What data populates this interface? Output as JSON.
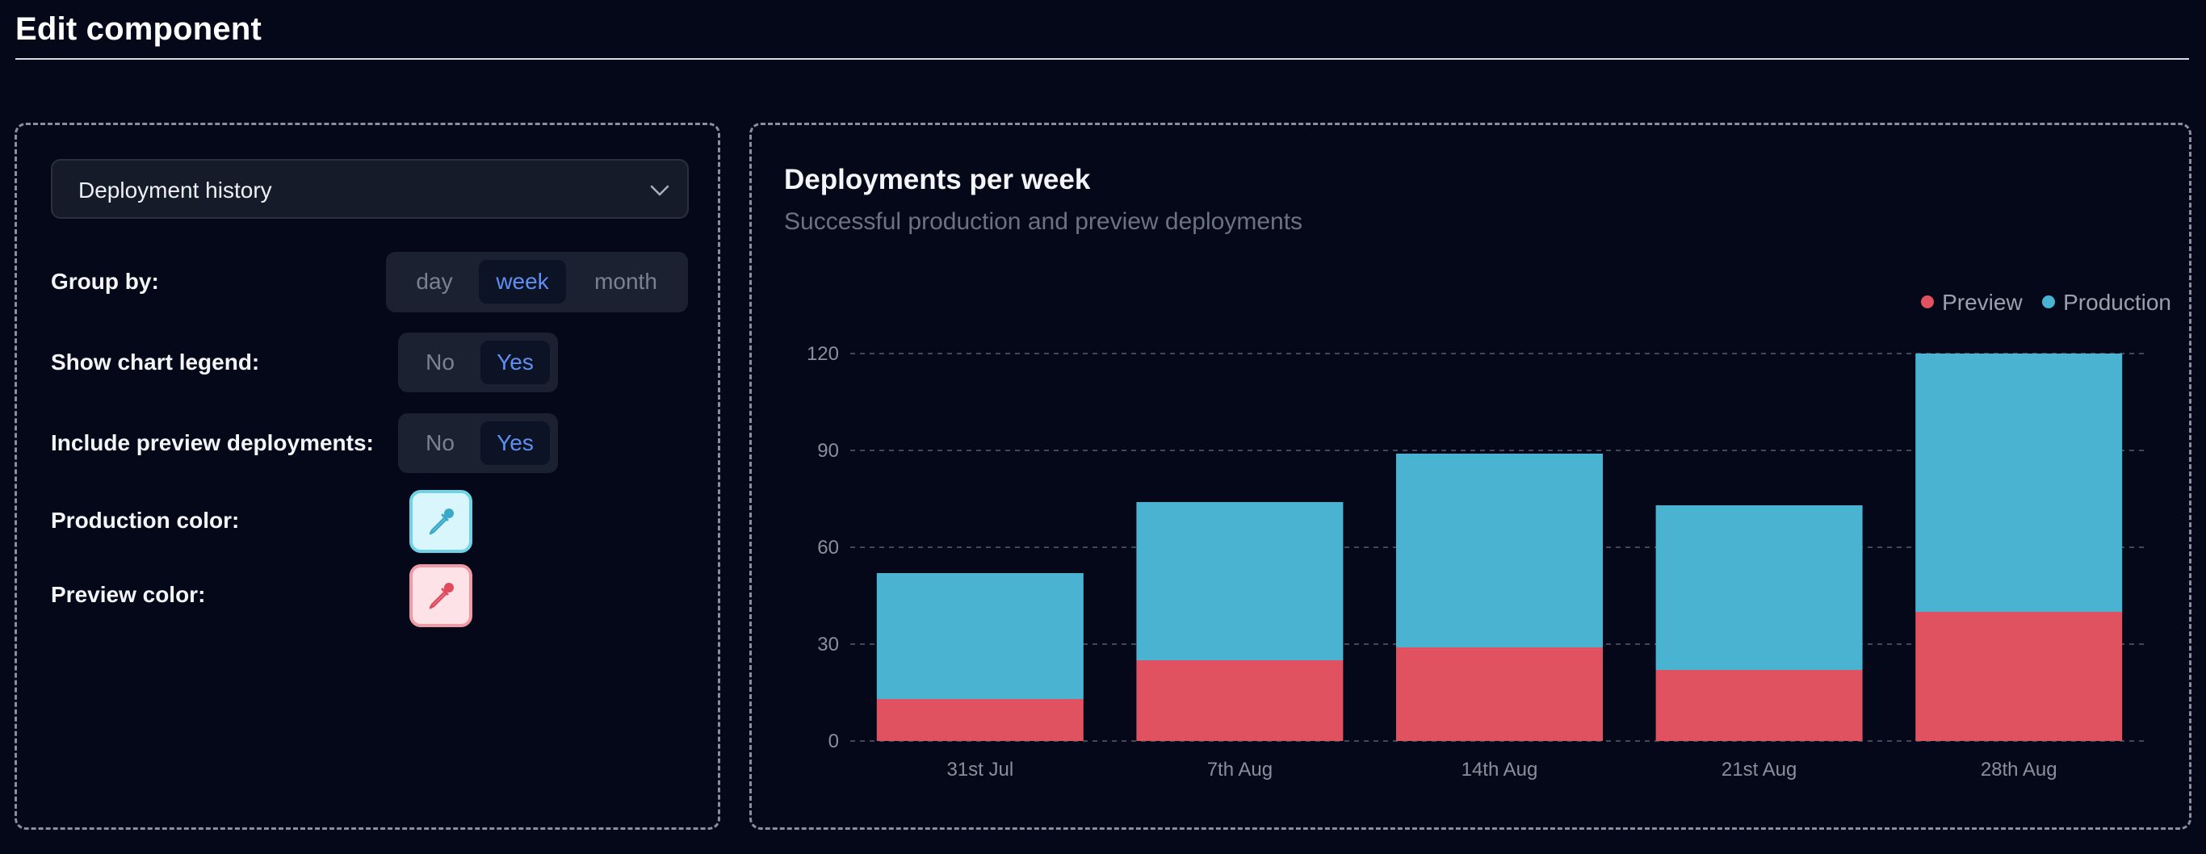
{
  "header": {
    "title": "Edit component"
  },
  "settings": {
    "component_select": {
      "value": "Deployment history"
    },
    "group_by": {
      "label": "Group by:",
      "options": [
        "day",
        "week",
        "month"
      ],
      "selected": "week"
    },
    "show_legend": {
      "label": "Show chart legend:",
      "options": [
        "No",
        "Yes"
      ],
      "selected": "Yes"
    },
    "include_preview": {
      "label": "Include preview deployments:",
      "options": [
        "No",
        "Yes"
      ],
      "selected": "Yes"
    },
    "production_color": {
      "label": "Production color:",
      "value": "#4bb3d2",
      "icon": "eyedropper-icon"
    },
    "preview_color": {
      "label": "Preview color:",
      "value": "#e15261",
      "icon": "eyedropper-icon"
    }
  },
  "chart": {
    "title": "Deployments per week",
    "subtitle": "Successful production and preview deployments",
    "legend": [
      {
        "name": "Preview",
        "color": "#e15261"
      },
      {
        "name": "Production",
        "color": "#4bb3d2"
      }
    ]
  },
  "chart_data": {
    "type": "bar",
    "stacked": true,
    "categories": [
      "31st Jul",
      "7th Aug",
      "14th Aug",
      "21st Aug",
      "28th Aug"
    ],
    "series": [
      {
        "name": "Preview",
        "color": "#e15261",
        "values": [
          13,
          25,
          29,
          22,
          40
        ]
      },
      {
        "name": "Production",
        "color": "#4bb3d2",
        "values": [
          39,
          49,
          60,
          51,
          80
        ]
      }
    ],
    "yticks": [
      0,
      30,
      60,
      90,
      120
    ],
    "ylim": [
      0,
      120
    ],
    "grid": true,
    "legend_position": "top-right"
  }
}
